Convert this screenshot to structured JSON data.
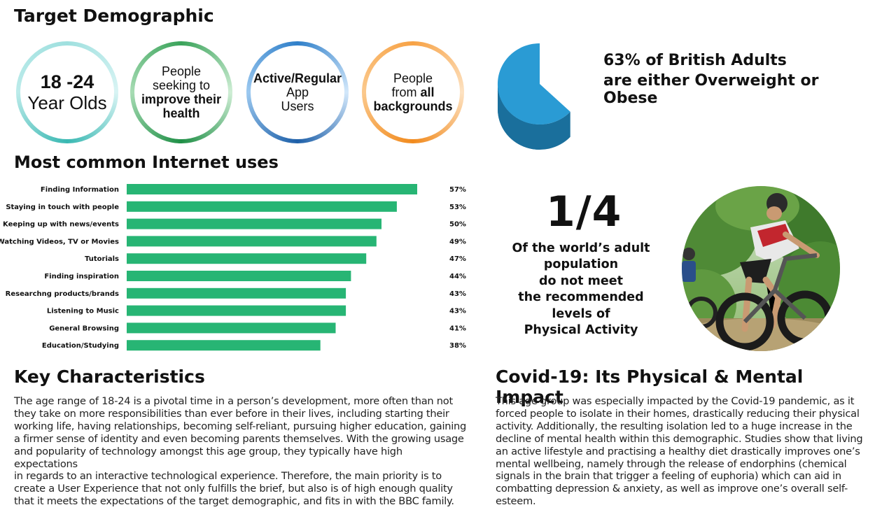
{
  "title": "Target Demographic",
  "bubbles": {
    "b1": {
      "line1": "18 -24",
      "line2": "Year Olds"
    },
    "b2": {
      "line1": "People",
      "line2": "seeking to",
      "line3": "improve their",
      "line4": "health"
    },
    "b3": {
      "line1": "Active/Regular",
      "line2": "App",
      "line3": "Users"
    },
    "b4": {
      "line1": "People",
      "line2a": "from ",
      "line2b": "all",
      "line3": "backgrounds"
    }
  },
  "obesity": {
    "line1": "63% of British Adults",
    "line2": "are either Overweight or Obese",
    "percent": 63,
    "color": "#2a9bd4",
    "side_color": "#1a6f9c"
  },
  "internet_uses_title": "Most common Internet uses",
  "chart_data": {
    "type": "bar",
    "orientation": "horizontal",
    "title": "Most common Internet uses",
    "categories": [
      "Finding Information",
      "Staying in touch with people",
      "Keeping up with news/events",
      "Watching Videos, TV or Movies",
      "Tutorials",
      "Finding inspiration",
      "Researchng products/brands",
      "Listening to Music",
      "General Browsing",
      "Education/Studying"
    ],
    "values": [
      57,
      53,
      50,
      49,
      47,
      44,
      43,
      43,
      41,
      38
    ],
    "value_labels": [
      "57%",
      "53%",
      "50%",
      "49%",
      "47%",
      "44%",
      "43%",
      "43%",
      "41%",
      "38%"
    ],
    "xlim": [
      0,
      57
    ],
    "bar_color": "#27b574",
    "grid": false
  },
  "activity": {
    "fraction": "1/4",
    "lines": [
      "Of the world’s adult",
      "population",
      "do not meet",
      "the recommended",
      "levels of",
      "Physical Activity"
    ]
  },
  "key_characteristics": {
    "title": "Key Characteristics",
    "lines": [
      "The age range of 18-24 is a pivotal time in a person’s development, more often than not",
      "they take on more responsibilities than ever before in their lives, including starting their",
      "working life, having relationships, becoming self-reliant, pursuing higher education, gaining",
      "a firmer sense of identity and even becoming parents themselves. With the growing usage",
      "and popularity of technology amongst this age group, they typically have high expectations",
      "in regards to an interactive technological experience. Therefore, the main priority is to",
      "create a User Experience that not only fulfills the brief, but also is of high enough quality",
      "that it meets the expectations of the target demographic, and fits in with the BBC family."
    ]
  },
  "covid": {
    "title": "Covid-19: Its Physical & Mental Impact",
    "lines": [
      "This age group was especially impacted by the Covid-19 pandemic, as it",
      "forced people to isolate in their homes, drastically reducing their physical",
      "activity. Additionally, the resulting isolation led to a huge increase in the",
      "decline of mental health within this demographic. Studies show that living",
      "an active lifestyle and practising a healthy diet drastically improves one’s",
      "mental wellbeing, namely through the release of endorphins (chemical",
      "signals in the brain that trigger a feeling of euphoria) which can aid in",
      "combatting depression & anxiety, as well as improve one’s overall self-",
      "esteem."
    ]
  }
}
